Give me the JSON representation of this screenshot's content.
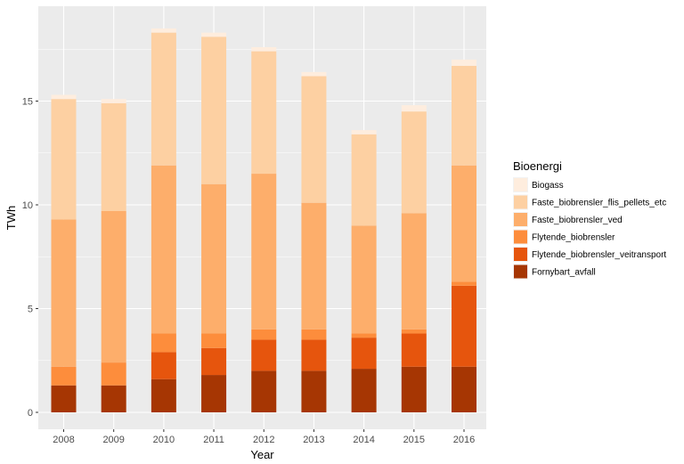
{
  "chart_data": {
    "type": "bar",
    "stacked": true,
    "xlabel": "Year",
    "ylabel": "TWh",
    "ylim": [
      0,
      19
    ],
    "yticks": [
      0,
      5,
      10,
      15
    ],
    "grid": true,
    "legend_title": "Bioenergi",
    "legend_position": "right",
    "categories": [
      "2008",
      "2009",
      "2010",
      "2011",
      "2012",
      "2013",
      "2014",
      "2015",
      "2016"
    ],
    "series": [
      {
        "name": "Fornybart_avfall",
        "color": "#a63603",
        "values": [
          1.3,
          1.3,
          1.6,
          1.8,
          2.0,
          2.0,
          2.1,
          2.2,
          2.2
        ]
      },
      {
        "name": "Flytende_biobrensler_veitransport",
        "color": "#e6550d",
        "values": [
          0,
          0,
          1.3,
          1.3,
          1.5,
          1.5,
          1.5,
          1.6,
          3.9
        ]
      },
      {
        "name": "Flytende_biobrensler",
        "color": "#fd8d3c",
        "values": [
          0.9,
          1.1,
          0.9,
          0.7,
          0.5,
          0.5,
          0.2,
          0.2,
          0.2
        ]
      },
      {
        "name": "Faste_biobrensler_ved",
        "color": "#fdae6b",
        "values": [
          7.1,
          7.3,
          8.1,
          7.2,
          7.5,
          6.1,
          5.2,
          5.6,
          5.6
        ]
      },
      {
        "name": "Faste_biobrensler_flis_pellets_etc",
        "color": "#fdd0a2",
        "values": [
          5.8,
          5.2,
          6.4,
          7.1,
          5.9,
          6.1,
          4.4,
          4.9,
          4.8
        ]
      },
      {
        "name": "Biogass",
        "color": "#feedde",
        "values": [
          0.2,
          0.2,
          0.2,
          0.2,
          0.2,
          0.2,
          0.2,
          0.3,
          0.3
        ]
      }
    ]
  }
}
